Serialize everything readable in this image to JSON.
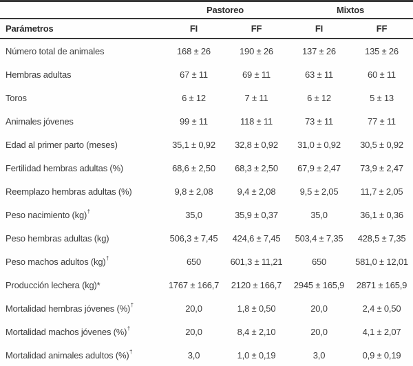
{
  "colors": {
    "text": "#3d3d3d",
    "header_text": "#2d2d2d",
    "rule_dark": "#383838",
    "rule_bottom": "#4d4d4d",
    "background": "#fefefe"
  },
  "table": {
    "param_header": "Parámetros",
    "groups": [
      {
        "label": "Pastoreo",
        "cols": [
          "FI",
          "FF"
        ]
      },
      {
        "label": "Mixtos",
        "cols": [
          "FI",
          "FF"
        ]
      }
    ],
    "rows": [
      {
        "param": "Número total de animales",
        "sup": "",
        "values": [
          "168 ± 26",
          "190 ± 26",
          "137 ± 26",
          "135 ± 26"
        ]
      },
      {
        "param": "Hembras adultas",
        "sup": "",
        "values": [
          "67 ± 11",
          "69 ± 11",
          "63 ± 11",
          "60 ± 11"
        ]
      },
      {
        "param": "Toros",
        "sup": "",
        "values": [
          "6 ± 12",
          "7 ± 11",
          "6 ± 12",
          "5 ± 13"
        ]
      },
      {
        "param": "Animales jóvenes",
        "sup": "",
        "values": [
          "99 ± 11",
          "118 ± 11",
          "73 ± 11",
          "77 ± 11"
        ]
      },
      {
        "param": "Edad al primer parto (meses)",
        "sup": "",
        "values": [
          "35,1 ± 0,92",
          "32,8 ± 0,92",
          "31,0 ± 0,92",
          "30,5 ± 0,92"
        ]
      },
      {
        "param": "Fertilidad hembras adultas (%)",
        "sup": "",
        "values": [
          "68,6 ± 2,50",
          "68,3 ± 2,50",
          "67,9 ± 2,47",
          "73,9 ± 2,47"
        ]
      },
      {
        "param": "Reemplazo hembras adultas (%)",
        "sup": "",
        "values": [
          "9,8 ± 2,08",
          "9,4 ± 2,08",
          "9,5 ± 2,05",
          "11,7 ± 2,05"
        ]
      },
      {
        "param": "Peso nacimiento (kg)",
        "sup": "†",
        "values": [
          "35,0",
          "35,9 ± 0,37",
          "35,0",
          "36,1 ± 0,36"
        ]
      },
      {
        "param": "Peso hembras adultas (kg)",
        "sup": "",
        "values": [
          "506,3 ± 7,45",
          "424,6 ± 7,45",
          "503,4 ± 7,35",
          "428,5 ± 7,35"
        ]
      },
      {
        "param": "Peso machos adultos (kg)",
        "sup": "†",
        "values": [
          "650",
          "601,3 ± 11,21",
          "650",
          "581,0 ± 12,01"
        ]
      },
      {
        "param": "Producción lechera (kg)*",
        "sup": "",
        "values": [
          "1767 ± 166,7",
          "2120 ± 166,7",
          "2945 ± 165,9",
          "2871 ± 165,9"
        ]
      },
      {
        "param": "Mortalidad hembras jóvenes (%)",
        "sup": "†",
        "values": [
          "20,0",
          "1,8 ± 0,50",
          "20,0",
          "2,4 ± 0,50"
        ]
      },
      {
        "param": "Mortalidad machos jóvenes (%)",
        "sup": "†",
        "values": [
          "20,0",
          "8,4 ± 2,10",
          "20,0",
          "4,1 ± 2,07"
        ]
      },
      {
        "param": "Mortalidad animales adultos (%)",
        "sup": "†",
        "values": [
          "3,0",
          "1,0 ± 0,19",
          "3,0",
          "0,9 ± 0,19"
        ]
      }
    ]
  }
}
